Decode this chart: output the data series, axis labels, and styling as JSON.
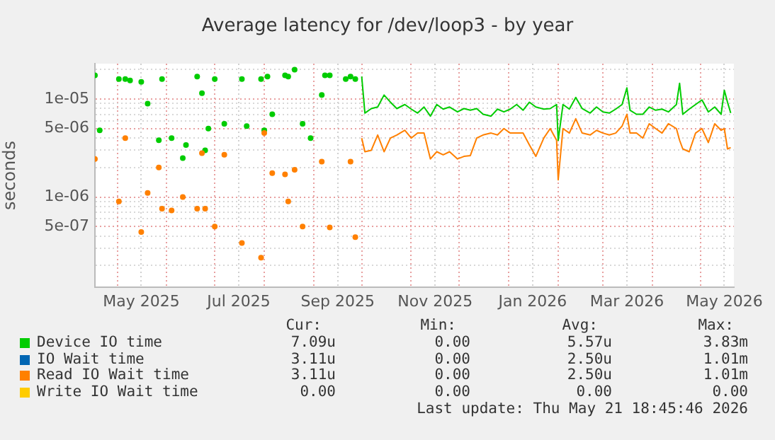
{
  "chart_data": {
    "type": "line",
    "title": "Average latency for /dev/loop3 - by year",
    "ylabel": "seconds",
    "log": true,
    "grid": true,
    "legend": "bottom",
    "xlim": [
      "2025-04-17",
      "2026-05-22"
    ],
    "ylim": [
      1.2e-07,
      2.3e-05
    ],
    "xticks": [
      {
        "value": "2025-05-01",
        "label": null
      },
      {
        "value": "2025-05-16",
        "label": "May 2025"
      },
      {
        "value": "2025-06-01",
        "label": null
      },
      {
        "value": "2025-07-01",
        "label": null
      },
      {
        "value": "2025-07-16",
        "label": "Jul 2025"
      },
      {
        "value": "2025-08-01",
        "label": null
      },
      {
        "value": "2025-09-01",
        "label": null
      },
      {
        "value": "2025-09-16",
        "label": "Sep 2025"
      },
      {
        "value": "2025-10-01",
        "label": null
      },
      {
        "value": "2025-11-01",
        "label": null
      },
      {
        "value": "2025-11-16",
        "label": "Nov 2025"
      },
      {
        "value": "2025-12-01",
        "label": null
      },
      {
        "value": "2026-01-01",
        "label": null
      },
      {
        "value": "2026-01-16",
        "label": "Jan 2026"
      },
      {
        "value": "2026-02-01",
        "label": null
      },
      {
        "value": "2026-03-01",
        "label": null
      },
      {
        "value": "2026-03-16",
        "label": "Mar 2026"
      },
      {
        "value": "2026-04-01",
        "label": null
      },
      {
        "value": "2026-05-01",
        "label": null
      },
      {
        "value": "2026-05-16",
        "label": "May 2026"
      }
    ],
    "yticks": [
      {
        "value": 2e-07,
        "label": null
      },
      {
        "value": 3e-07,
        "label": null
      },
      {
        "value": 4e-07,
        "label": null
      },
      {
        "value": 5e-07,
        "label": "5e-07"
      },
      {
        "value": 6e-07,
        "label": null
      },
      {
        "value": 7e-07,
        "label": null
      },
      {
        "value": 8e-07,
        "label": null
      },
      {
        "value": 9e-07,
        "label": null
      },
      {
        "value": 1e-06,
        "label": "1e-06"
      },
      {
        "value": 2e-06,
        "label": null
      },
      {
        "value": 3e-06,
        "label": null
      },
      {
        "value": 4e-06,
        "label": null
      },
      {
        "value": 5e-06,
        "label": "5e-06"
      },
      {
        "value": 6e-06,
        "label": null
      },
      {
        "value": 7e-06,
        "label": null
      },
      {
        "value": 8e-06,
        "label": null
      },
      {
        "value": 9e-06,
        "label": null
      },
      {
        "value": 1e-05,
        "label": "1e-05"
      },
      {
        "value": 2e-05,
        "label": null
      }
    ],
    "x": [
      "2025-04-17",
      "2025-04-18",
      "2025-04-19",
      "2025-04-20",
      "2025-04-21",
      "2025-05-01",
      "2025-05-02",
      "2025-05-03",
      "2025-05-05",
      "2025-05-06",
      "2025-05-07",
      "2025-05-08",
      "2025-05-09",
      "2025-05-10",
      "2025-05-15",
      "2025-05-16",
      "2025-05-17",
      "2025-05-19",
      "2025-05-20",
      "2025-05-21",
      "2025-05-26",
      "2025-05-27",
      "2025-05-28",
      "2025-05-29",
      "2025-05-30",
      "2025-06-03",
      "2025-06-04",
      "2025-06-05",
      "2025-06-10",
      "2025-06-11",
      "2025-06-12",
      "2025-06-13",
      "2025-06-14",
      "2025-06-19",
      "2025-06-20",
      "2025-06-21",
      "2025-06-22",
      "2025-06-23",
      "2025-06-24",
      "2025-06-25",
      "2025-06-26",
      "2025-06-27",
      "2025-06-28",
      "2025-06-30",
      "2025-07-01",
      "2025-07-02",
      "2025-07-06",
      "2025-07-07",
      "2025-07-08",
      "2025-07-17",
      "2025-07-18",
      "2025-07-19",
      "2025-07-20",
      "2025-07-21",
      "2025-07-22",
      "2025-07-29",
      "2025-07-30",
      "2025-07-31",
      "2025-08-01",
      "2025-08-02",
      "2025-08-03",
      "2025-08-04",
      "2025-08-05",
      "2025-08-06",
      "2025-08-07",
      "2025-08-13",
      "2025-08-14",
      "2025-08-15",
      "2025-08-16",
      "2025-08-17",
      "2025-08-19",
      "2025-08-20",
      "2025-08-21",
      "2025-08-24",
      "2025-08-25",
      "2025-08-26",
      "2025-08-29",
      "2025-08-30",
      "2025-08-31",
      "2025-09-05",
      "2025-09-06",
      "2025-09-07",
      "2025-09-08",
      "2025-09-09",
      "2025-09-10",
      "2025-09-11",
      "2025-09-12",
      "2025-09-20",
      "2025-09-21",
      "2025-09-22",
      "2025-09-23",
      "2025-09-24",
      "2025-09-25",
      "2025-09-26",
      "2025-09-27",
      "2025-09-28",
      "2025-09-30",
      "2025-10-01",
      "2025-10-03",
      "2025-10-07",
      "2025-10-11",
      "2025-10-15",
      "2025-10-19",
      "2025-10-23",
      "2025-10-28",
      "2025-11-01",
      "2025-11-05",
      "2025-11-09",
      "2025-11-13",
      "2025-11-17",
      "2025-11-21",
      "2025-11-25",
      "2025-11-30",
      "2025-12-04",
      "2025-12-08",
      "2025-12-12",
      "2025-12-16",
      "2025-12-21",
      "2025-12-25",
      "2025-12-29",
      "2026-01-02",
      "2026-01-06",
      "2026-01-10",
      "2026-01-14",
      "2026-01-18",
      "2026-01-23",
      "2026-01-27",
      "2026-01-31",
      "2026-02-01",
      "2026-02-04",
      "2026-02-08",
      "2026-02-12",
      "2026-02-16",
      "2026-02-21",
      "2026-02-25",
      "2026-03-01",
      "2026-03-05",
      "2026-03-09",
      "2026-03-13",
      "2026-03-16",
      "2026-03-18",
      "2026-03-22",
      "2026-03-26",
      "2026-03-30",
      "2026-04-03",
      "2026-04-07",
      "2026-04-11",
      "2026-04-16",
      "2026-04-18",
      "2026-04-20",
      "2026-04-24",
      "2026-04-28",
      "2026-05-02",
      "2026-05-06",
      "2026-05-10",
      "2026-05-14",
      "2026-05-16",
      "2026-05-18",
      "2026-05-20"
    ],
    "series": [
      {
        "name": "Device IO time",
        "color": "#00cc00",
        "values": [
          1.75e-05,
          null,
          null,
          4.8e-06,
          null,
          null,
          1.6e-05,
          null,
          null,
          1.6e-05,
          null,
          null,
          1.55e-05,
          null,
          null,
          1.5e-05,
          null,
          null,
          9e-06,
          null,
          null,
          3.8e-06,
          null,
          1.6e-05,
          null,
          null,
          4e-06,
          null,
          null,
          2.5e-06,
          null,
          3.4e-06,
          null,
          null,
          1.7e-05,
          null,
          null,
          1.15e-05,
          null,
          3e-06,
          null,
          5e-06,
          null,
          null,
          1.6e-05,
          null,
          null,
          5.6e-06,
          null,
          null,
          1.6e-05,
          null,
          null,
          5.3e-06,
          null,
          null,
          1.6e-05,
          null,
          4.8e-06,
          null,
          1.7e-05,
          null,
          null,
          7e-06,
          null,
          null,
          1.75e-05,
          null,
          1.7e-05,
          null,
          null,
          2e-05,
          null,
          null,
          5.6e-06,
          null,
          null,
          4e-06,
          null,
          null,
          1.1e-05,
          null,
          1.75e-05,
          null,
          null,
          1.75e-05,
          null,
          null,
          1.6e-05,
          null,
          null,
          1.7e-05,
          null,
          null,
          1.6e-05,
          null,
          null,
          1.7e-05,
          7.2e-06,
          8e-06,
          8.3e-06,
          1.1e-05,
          9.3e-06,
          8e-06,
          8.8e-06,
          7.9e-06,
          7.2e-06,
          8.3e-06,
          6.7e-06,
          8.8e-06,
          7.9e-06,
          8.3e-06,
          7.4e-06,
          8e-06,
          7.7e-06,
          8e-06,
          7e-06,
          6.7e-06,
          7.9e-06,
          7.4e-06,
          7.9e-06,
          8.8e-06,
          7.7e-06,
          9.3e-06,
          8.3e-06,
          7.9e-06,
          8e-06,
          8.8e-06,
          3.8e-06,
          8.8e-06,
          7.9e-06,
          1.04e-05,
          8e-06,
          7.2e-06,
          8.3e-06,
          7.4e-06,
          7.2e-06,
          7.9e-06,
          8.8e-06,
          1.3e-05,
          7.7e-06,
          7e-06,
          7e-06,
          8.3e-06,
          7.7e-06,
          7.9e-06,
          7.4e-06,
          8.8e-06,
          1.45e-05,
          7e-06,
          7.9e-06,
          8.8e-06,
          9.8e-06,
          7.4e-06,
          8.3e-06,
          7e-06,
          1.23e-05,
          9.3e-06,
          7.2e-06
        ]
      },
      {
        "name": "IO Wait time",
        "color": "#0066b3",
        "values": [
          null,
          null,
          null,
          null,
          null,
          null,
          null,
          null,
          null,
          null,
          null,
          null,
          null,
          null,
          null,
          null,
          null,
          null,
          null,
          null,
          null,
          null,
          null,
          null,
          null,
          null,
          null,
          null,
          null,
          null,
          null,
          null,
          null,
          null,
          null,
          null,
          null,
          null,
          null,
          null,
          null,
          null,
          null,
          null,
          null,
          null,
          null,
          null,
          null,
          null,
          null,
          null,
          null,
          null,
          null,
          null,
          null,
          null,
          null,
          null,
          null,
          null,
          null,
          null,
          null,
          null,
          null,
          null,
          null,
          null,
          null,
          null,
          null,
          null,
          null,
          null,
          null,
          null,
          null,
          null,
          null,
          null,
          null,
          null,
          null,
          null,
          null,
          null,
          null,
          null,
          null,
          null,
          null,
          null,
          null,
          null,
          null,
          null,
          null,
          null,
          null,
          null,
          null,
          null,
          null,
          null,
          null,
          null,
          null,
          null,
          null,
          null,
          null,
          null,
          null,
          null,
          null,
          null,
          null,
          null,
          null,
          null,
          null,
          null,
          null,
          null,
          null,
          null,
          null,
          null,
          null,
          null,
          null,
          null,
          null,
          null,
          null,
          null,
          null,
          null,
          null,
          null,
          null,
          null,
          null,
          null,
          null,
          null,
          null,
          null,
          null,
          null,
          null,
          null,
          null,
          null,
          null,
          null,
          null
        ]
      },
      {
        "name": "Read IO Wait time",
        "color": "#ff8000",
        "values": [
          2.45e-06,
          null,
          null,
          null,
          null,
          null,
          9e-07,
          null,
          null,
          4e-06,
          null,
          null,
          null,
          null,
          null,
          4.4e-07,
          null,
          null,
          1.1e-06,
          null,
          null,
          2e-06,
          null,
          7.6e-07,
          null,
          null,
          7.3e-07,
          null,
          null,
          1e-06,
          null,
          null,
          null,
          null,
          7.6e-07,
          null,
          null,
          2.8e-06,
          null,
          7.6e-07,
          null,
          null,
          null,
          null,
          5e-07,
          null,
          null,
          2.7e-06,
          null,
          null,
          3.4e-07,
          null,
          null,
          null,
          null,
          null,
          2.4e-07,
          null,
          4.5e-06,
          null,
          null,
          null,
          null,
          1.75e-06,
          null,
          null,
          1.7e-06,
          null,
          9e-07,
          null,
          null,
          1.9e-06,
          null,
          null,
          5e-07,
          null,
          null,
          null,
          null,
          null,
          2.3e-06,
          null,
          null,
          null,
          null,
          4.9e-07,
          null,
          null,
          null,
          null,
          null,
          2.3e-06,
          null,
          null,
          3.9e-07,
          null,
          null,
          4e-06,
          2.9e-06,
          3e-06,
          4.3e-06,
          2.9e-06,
          4e-06,
          4.3e-06,
          4.8e-06,
          4e-06,
          4.5e-06,
          4.5e-06,
          2.45e-06,
          2.9e-06,
          2.7e-06,
          2.9e-06,
          2.45e-06,
          2.6e-06,
          2.65e-06,
          4e-06,
          4.3e-06,
          4.5e-06,
          4.3e-06,
          5e-06,
          4.5e-06,
          4.5e-06,
          4.5e-06,
          3.4e-06,
          2.6e-06,
          4e-06,
          5e-06,
          3.8e-06,
          1.5e-06,
          5e-06,
          4.5e-06,
          6.3e-06,
          4.5e-06,
          4.3e-06,
          4.8e-06,
          4.5e-06,
          4.3e-06,
          4.5e-06,
          5.3e-06,
          7e-06,
          4.5e-06,
          4.5e-06,
          4e-06,
          5.6e-06,
          5e-06,
          4.5e-06,
          5.6e-06,
          5e-06,
          3.8e-06,
          3.1e-06,
          2.9e-06,
          4.5e-06,
          5e-06,
          3.6e-06,
          5.6e-06,
          4.8e-06,
          5e-06,
          3.1e-06,
          3.2e-06
        ]
      },
      {
        "name": "Write IO Wait time",
        "color": "#ffcc00",
        "values": [
          null,
          null,
          null,
          null,
          null,
          null,
          null,
          null,
          null,
          null,
          null,
          null,
          null,
          null,
          null,
          null,
          null,
          null,
          null,
          null,
          null,
          null,
          null,
          null,
          null,
          null,
          null,
          null,
          null,
          null,
          null,
          null,
          null,
          null,
          null,
          null,
          null,
          null,
          null,
          null,
          null,
          null,
          null,
          null,
          null,
          null,
          null,
          null,
          null,
          null,
          null,
          null,
          null,
          null,
          null,
          null,
          null,
          null,
          null,
          null,
          null,
          null,
          null,
          null,
          null,
          null,
          null,
          null,
          null,
          null,
          null,
          null,
          null,
          null,
          null,
          null,
          null,
          null,
          null,
          null,
          null,
          null,
          null,
          null,
          null,
          null,
          null,
          null,
          null,
          null,
          null,
          null,
          null,
          null,
          null,
          null,
          null,
          null,
          null,
          null,
          null,
          null,
          null,
          null,
          null,
          null,
          null,
          null,
          null,
          null,
          null,
          null,
          null,
          null,
          null,
          null,
          null,
          null,
          null,
          null,
          null,
          null,
          null,
          null,
          null,
          null,
          null,
          null,
          null,
          null,
          null,
          null,
          null,
          null,
          null,
          null,
          null,
          null,
          null,
          null,
          null,
          null,
          null,
          null,
          null,
          null,
          null,
          null,
          null,
          null,
          null,
          null,
          null,
          null,
          null,
          null,
          null,
          null,
          null
        ]
      }
    ],
    "annotations": [
      "Cur:",
      "Min:",
      "Avg:",
      "Max:",
      "7.09u",
      "0.00",
      "5.57u",
      "3.83m",
      "3.11u",
      "0.00",
      "2.50u",
      "1.01m",
      "3.11u",
      "0.00",
      "2.50u",
      "1.01m",
      "0.00",
      "0.00",
      "0.00",
      "0.00",
      "Last update: Thu May 21 18:45:46 2026"
    ]
  }
}
